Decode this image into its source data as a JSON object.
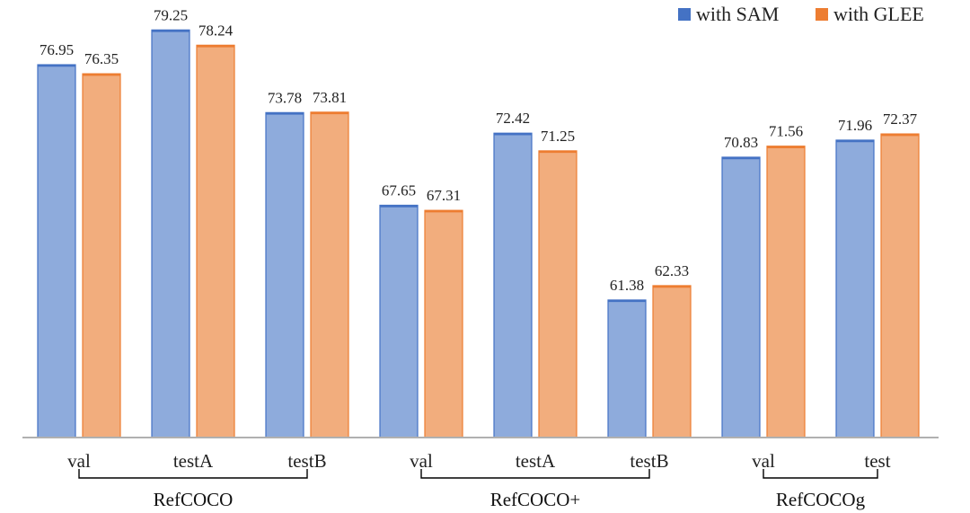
{
  "chart_data": {
    "type": "bar",
    "title": "",
    "xlabel": "",
    "ylabel": "",
    "ylim": [
      52.28,
      80.4
    ],
    "legend_position": "top-right",
    "groups": [
      {
        "name": "RefCOCO",
        "categories": [
          "val",
          "testA",
          "testB"
        ]
      },
      {
        "name": "RefCOCO+",
        "categories": [
          "val",
          "testA",
          "testB"
        ]
      },
      {
        "name": "RefCOCOg",
        "categories": [
          "val",
          "test"
        ]
      }
    ],
    "categories": [
      "val",
      "testA",
      "testB",
      "val",
      "testA",
      "testB",
      "val",
      "test"
    ],
    "series": [
      {
        "name": "with SAM",
        "color": "#8EABDC",
        "border": "#4472C4",
        "values": [
          76.95,
          79.25,
          73.78,
          67.65,
          72.42,
          61.38,
          70.83,
          71.96
        ],
        "labels": [
          "76.95",
          "79.25",
          "73.78",
          "67.65",
          "72.42",
          "61.38",
          "70.83",
          "71.96"
        ]
      },
      {
        "name": "with GLEE",
        "color": "#F2AD7D",
        "border": "#ED7D31",
        "values": [
          76.35,
          78.24,
          73.81,
          67.31,
          71.25,
          62.33,
          71.56,
          72.37
        ],
        "labels": [
          "76.35",
          "78.24",
          "73.81",
          "67.31",
          "71.25",
          "62.33",
          "71.56",
          "72.37"
        ]
      }
    ]
  }
}
